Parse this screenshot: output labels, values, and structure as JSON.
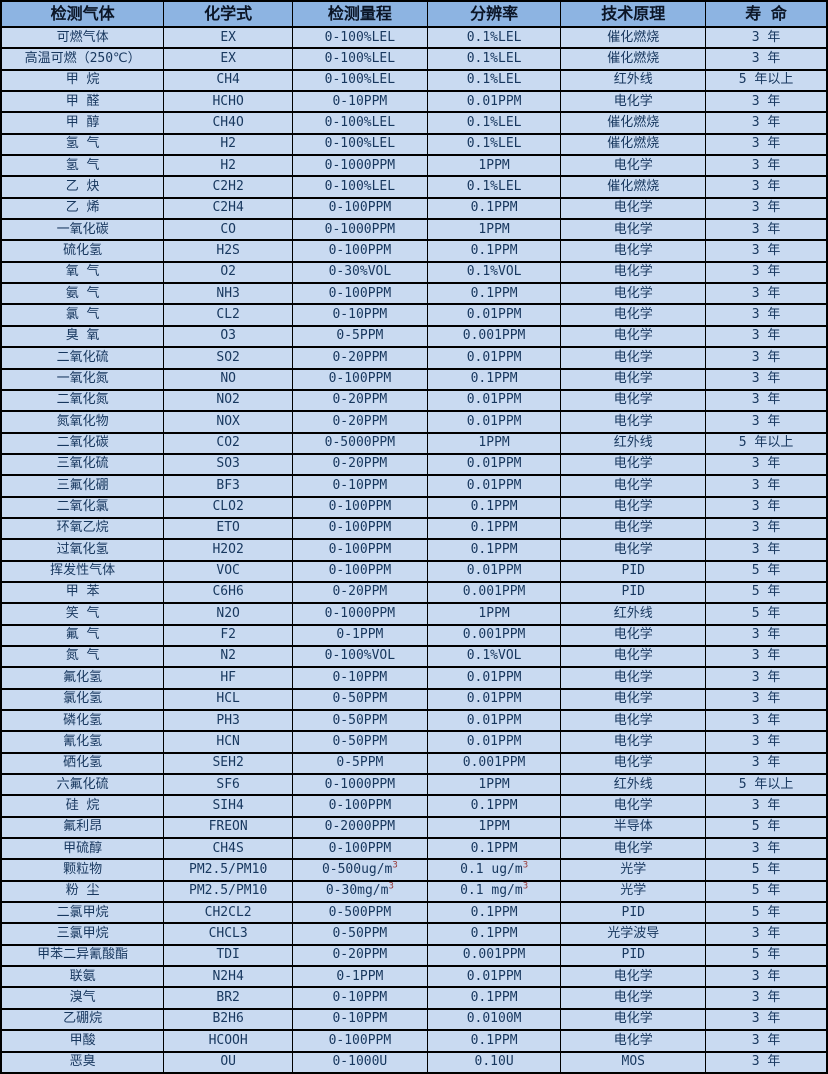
{
  "colors": {
    "header_bg": "#8DB4E2",
    "row_bg": "#C9DAF1",
    "border": "#000000",
    "header_text": "#0b1526",
    "body_text": "#17375E",
    "superscript": "#963634"
  },
  "table": {
    "headers": [
      "检测气体",
      "化学式",
      "检测量程",
      "分辨率",
      "技术原理",
      "寿 命"
    ],
    "column_names": [
      "gas-name",
      "chemical-formula",
      "detection-range",
      "resolution",
      "technology-principle",
      "lifespan"
    ],
    "rows": [
      [
        "可燃气体",
        "EX",
        "0-100%LEL",
        "0.1%LEL",
        "催化燃烧",
        "3 年"
      ],
      [
        "高温可燃（250℃）",
        "EX",
        "0-100%LEL",
        "0.1%LEL",
        "催化燃烧",
        "3 年"
      ],
      [
        "甲 烷",
        "CH4",
        "0-100%LEL",
        "0.1%LEL",
        "红外线",
        "5 年以上"
      ],
      [
        "甲 醛",
        "HCHO",
        "0-10PPM",
        "0.01PPM",
        "电化学",
        "3 年"
      ],
      [
        "甲 醇",
        "CH4O",
        "0-100%LEL",
        "0.1%LEL",
        "催化燃烧",
        "3 年"
      ],
      [
        "氢 气",
        "H2",
        "0-100%LEL",
        "0.1%LEL",
        "催化燃烧",
        "3 年"
      ],
      [
        "氢 气",
        "H2",
        "0-1000PPM",
        "1PPM",
        "电化学",
        "3 年"
      ],
      [
        "乙 炔",
        "C2H2",
        "0-100%LEL",
        "0.1%LEL",
        "催化燃烧",
        "3 年"
      ],
      [
        "乙 烯",
        "C2H4",
        "0-100PPM",
        "0.1PPM",
        "电化学",
        "3 年"
      ],
      [
        "一氧化碳",
        "CO",
        "0-1000PPM",
        "1PPM",
        "电化学",
        "3 年"
      ],
      [
        "硫化氢",
        "H2S",
        "0-100PPM",
        "0.1PPM",
        "电化学",
        "3 年"
      ],
      [
        "氧 气",
        "O2",
        "0-30%VOL",
        "0.1%VOL",
        "电化学",
        "3 年"
      ],
      [
        "氨 气",
        "NH3",
        "0-100PPM",
        "0.1PPM",
        "电化学",
        "3 年"
      ],
      [
        "氯 气",
        "CL2",
        "0-10PPM",
        "0.01PPM",
        "电化学",
        "3 年"
      ],
      [
        "臭 氧",
        "O3",
        "0-5PPM",
        "0.001PPM",
        "电化学",
        "3 年"
      ],
      [
        "二氧化硫",
        "SO2",
        "0-20PPM",
        "0.01PPM",
        "电化学",
        "3 年"
      ],
      [
        "一氧化氮",
        "NO",
        "0-100PPM",
        "0.1PPM",
        "电化学",
        "3 年"
      ],
      [
        "二氧化氮",
        "NO2",
        "0-20PPM",
        "0.01PPM",
        "电化学",
        "3 年"
      ],
      [
        "氮氧化物",
        "NOX",
        "0-20PPM",
        "0.01PPM",
        "电化学",
        "3 年"
      ],
      [
        "二氧化碳",
        "CO2",
        "0-5000PPM",
        "1PPM",
        "红外线",
        "5 年以上"
      ],
      [
        "三氧化硫",
        "SO3",
        "0-20PPM",
        "0.01PPM",
        "电化学",
        "3 年"
      ],
      [
        "三氟化硼",
        "BF3",
        "0-10PPM",
        "0.01PPM",
        "电化学",
        "3 年"
      ],
      [
        "二氧化氯",
        "CLO2",
        "0-100PPM",
        "0.1PPM",
        "电化学",
        "3 年"
      ],
      [
        "环氧乙烷",
        "ETO",
        "0-100PPM",
        "0.1PPM",
        "电化学",
        "3 年"
      ],
      [
        "过氧化氢",
        "H2O2",
        "0-100PPM",
        "0.1PPM",
        "电化学",
        "3 年"
      ],
      [
        "挥发性气体",
        "VOC",
        "0-100PPM",
        "0.01PPM",
        "PID",
        "5 年"
      ],
      [
        "甲 苯",
        "C6H6",
        "0-20PPM",
        "0.001PPM",
        "PID",
        "5 年"
      ],
      [
        "笑 气",
        "N2O",
        "0-1000PPM",
        "1PPM",
        "红外线",
        "5 年"
      ],
      [
        "氟 气",
        "F2",
        "0-1PPM",
        "0.001PPM",
        "电化学",
        "3 年"
      ],
      [
        "氮 气",
        "N2",
        "0-100%VOL",
        "0.1%VOL",
        "电化学",
        "3 年"
      ],
      [
        "氟化氢",
        "HF",
        "0-10PPM",
        "0.01PPM",
        "电化学",
        "3 年"
      ],
      [
        "氯化氢",
        "HCL",
        "0-50PPM",
        "0.01PPM",
        "电化学",
        "3 年"
      ],
      [
        "磷化氢",
        "PH3",
        "0-50PPM",
        "0.01PPM",
        "电化学",
        "3 年"
      ],
      [
        "氰化氢",
        "HCN",
        "0-50PPM",
        "0.01PPM",
        "电化学",
        "3 年"
      ],
      [
        "硒化氢",
        "SEH2",
        "0-5PPM",
        "0.001PPM",
        "电化学",
        "3 年"
      ],
      [
        "六氟化硫",
        "SF6",
        "0-1000PPM",
        "1PPM",
        "红外线",
        "5 年以上"
      ],
      [
        "硅 烷",
        "SIH4",
        "0-100PPM",
        "0.1PPM",
        "电化学",
        "3 年"
      ],
      [
        "氟利昂",
        "FREON",
        "0-2000PPM",
        "1PPM",
        "半导体",
        "5 年"
      ],
      [
        "甲硫醇",
        "CH4S",
        "0-100PPM",
        "0.1PPM",
        "电化学",
        "3 年"
      ],
      [
        "颗粒物",
        "PM2.5/PM10",
        "0-500ug/m³",
        "0.1 ug/m³",
        "光学",
        "5 年"
      ],
      [
        "粉 尘",
        "PM2.5/PM10",
        "0-30mg/m³",
        "0.1 mg/m³",
        "光学",
        "5 年"
      ],
      [
        "二氯甲烷",
        "CH2CL2",
        "0-500PPM",
        "0.1PPM",
        "PID",
        "5 年"
      ],
      [
        "三氯甲烷",
        "CHCL3",
        "0-50PPM",
        "0.1PPM",
        "光学波导",
        "3 年"
      ],
      [
        "甲苯二异氰酸酯",
        "TDI",
        "0-20PPM",
        "0.001PPM",
        "PID",
        "5 年"
      ],
      [
        "联氨",
        "N2H4",
        "0-1PPM",
        "0.01PPM",
        "电化学",
        "3 年"
      ],
      [
        "溴气",
        "BR2",
        "0-10PPM",
        "0.1PPM",
        "电化学",
        "3 年"
      ],
      [
        "乙硼烷",
        "B2H6",
        "0-10PPM",
        "0.0100M",
        "电化学",
        "3 年"
      ],
      [
        "甲酸",
        "HCOOH",
        "0-100PPM",
        "0.1PPM",
        "电化学",
        "3 年"
      ],
      [
        "恶臭",
        "OU",
        "0-1000U",
        "0.10U",
        "MOS",
        "3 年"
      ]
    ]
  }
}
